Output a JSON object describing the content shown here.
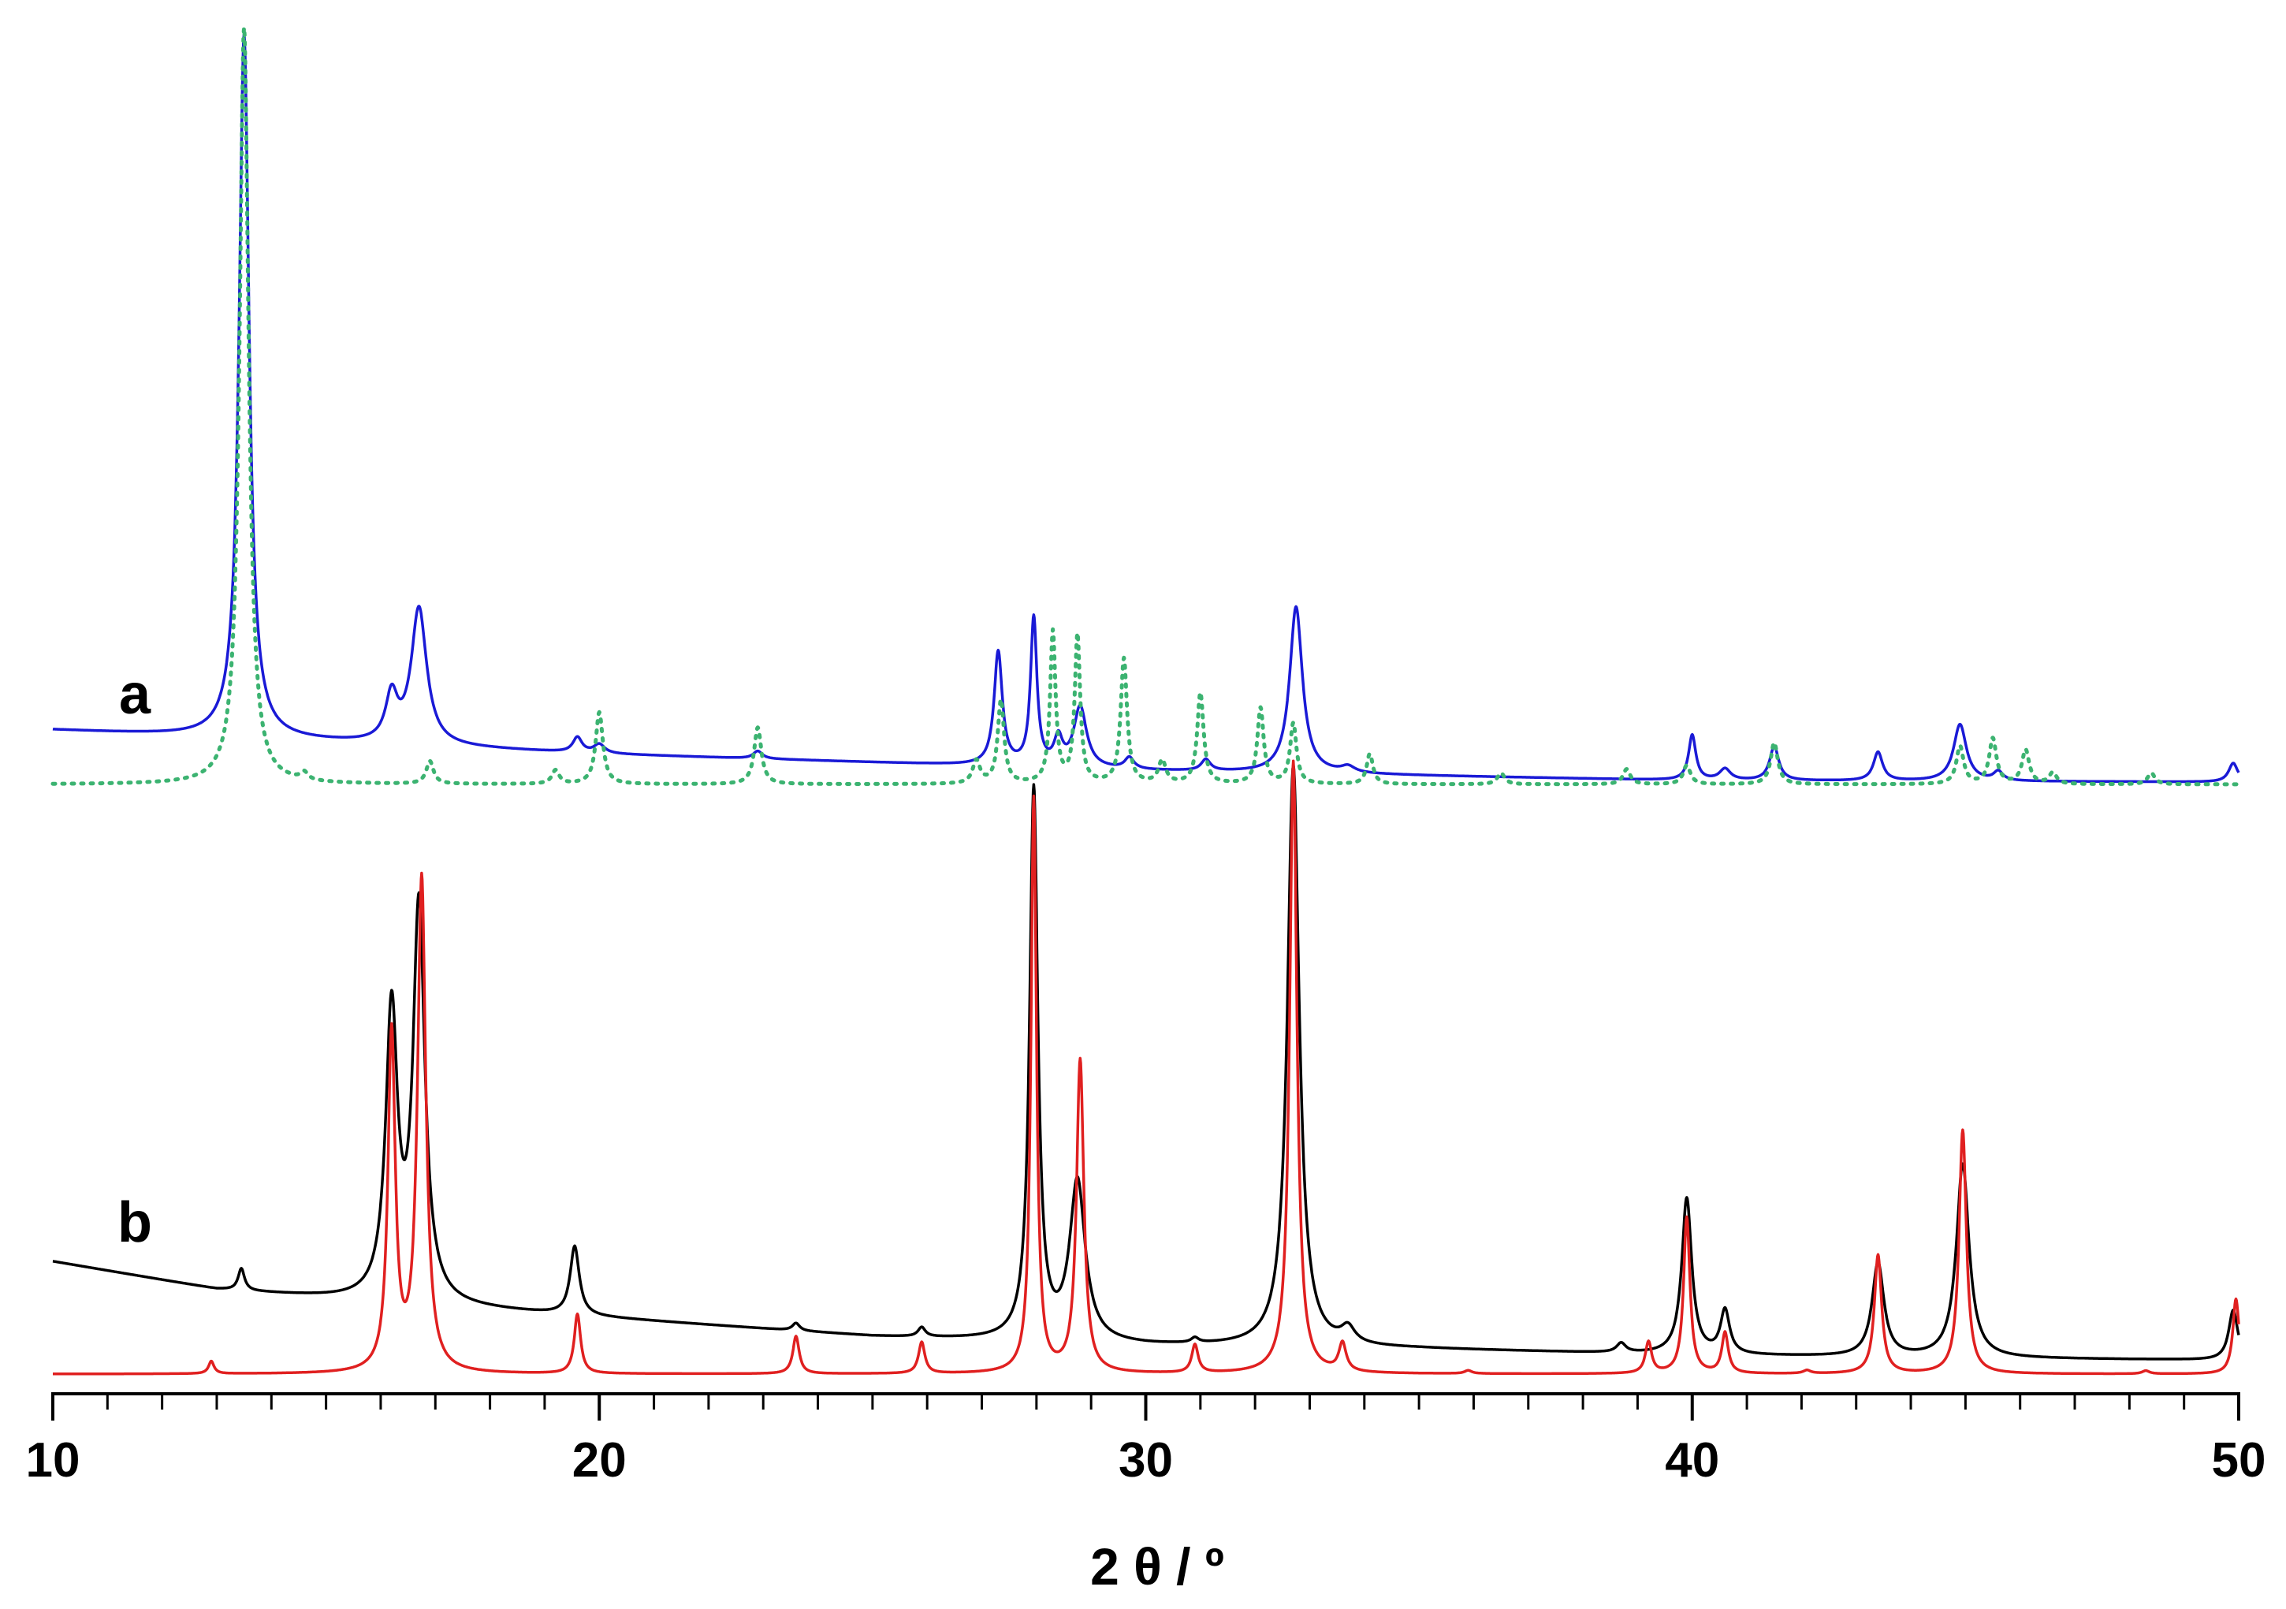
{
  "chart_data": {
    "type": "line",
    "title": "",
    "xlabel": "2 θ / º",
    "ylabel": "",
    "xlim": [
      10,
      50
    ],
    "x_major_ticks": [
      10,
      20,
      30,
      40,
      50
    ],
    "x_minor_step": 1,
    "y_axis_shown": false,
    "grid": false,
    "legend": "none",
    "colors": {
      "a_experimental": "#1a1ad6",
      "a_simulated": "#3cb371",
      "b_experimental": "#000000",
      "b_simulated": "#e02020"
    },
    "panels": [
      {
        "label": "a",
        "label_x": 11.5,
        "yrange": [
          0,
          100
        ],
        "series": [
          {
            "key": "a_experimental",
            "style": "solid",
            "baseline": [
              [
                10,
                7.2
              ],
              [
                20,
                4.0
              ],
              [
                30,
                1.8
              ],
              [
                40,
                0.5
              ],
              [
                50,
                0.3
              ]
            ],
            "peaks": [
              {
                "x": 13.5,
                "h": 93,
                "w": 0.11
              },
              {
                "x": 16.2,
                "h": 6,
                "w": 0.13
              },
              {
                "x": 16.7,
                "h": 18,
                "w": 0.17
              },
              {
                "x": 19.6,
                "h": 2.0,
                "w": 0.1
              },
              {
                "x": 20.0,
                "h": 1.2,
                "w": 0.12
              },
              {
                "x": 22.9,
                "h": 1.0,
                "w": 0.1
              },
              {
                "x": 27.3,
                "h": 15,
                "w": 0.09
              },
              {
                "x": 27.95,
                "h": 19.5,
                "w": 0.07
              },
              {
                "x": 28.4,
                "h": 3.5,
                "w": 0.09
              },
              {
                "x": 28.8,
                "h": 8,
                "w": 0.14
              },
              {
                "x": 29.7,
                "h": 1.5,
                "w": 0.1
              },
              {
                "x": 31.1,
                "h": 1.5,
                "w": 0.1
              },
              {
                "x": 32.75,
                "h": 22,
                "w": 0.14
              },
              {
                "x": 33.7,
                "h": 0.8,
                "w": 0.15
              },
              {
                "x": 40.0,
                "h": 6,
                "w": 0.08
              },
              {
                "x": 40.6,
                "h": 1.5,
                "w": 0.12
              },
              {
                "x": 41.5,
                "h": 4.5,
                "w": 0.1
              },
              {
                "x": 43.4,
                "h": 3.8,
                "w": 0.1
              },
              {
                "x": 44.9,
                "h": 7.5,
                "w": 0.14
              },
              {
                "x": 45.6,
                "h": 1.2,
                "w": 0.1
              },
              {
                "x": 49.9,
                "h": 2.5,
                "w": 0.1
              }
            ]
          },
          {
            "key": "a_simulated",
            "style": "dotted",
            "baseline": [
              [
                10,
                0
              ],
              [
                50,
                0
              ]
            ],
            "peaks": [
              {
                "x": 13.5,
                "h": 100,
                "w": 0.1
              },
              {
                "x": 14.6,
                "h": 1.0,
                "w": 0.08
              },
              {
                "x": 16.9,
                "h": 3.0,
                "w": 0.08
              },
              {
                "x": 19.2,
                "h": 1.8,
                "w": 0.08
              },
              {
                "x": 20.0,
                "h": 9.5,
                "w": 0.08
              },
              {
                "x": 22.9,
                "h": 7.5,
                "w": 0.08
              },
              {
                "x": 26.9,
                "h": 3.0,
                "w": 0.08
              },
              {
                "x": 27.35,
                "h": 11,
                "w": 0.07
              },
              {
                "x": 28.3,
                "h": 20,
                "w": 0.06
              },
              {
                "x": 28.75,
                "h": 19.5,
                "w": 0.06
              },
              {
                "x": 29.6,
                "h": 16.5,
                "w": 0.07
              },
              {
                "x": 30.3,
                "h": 3.0,
                "w": 0.08
              },
              {
                "x": 31.0,
                "h": 12,
                "w": 0.07
              },
              {
                "x": 32.1,
                "h": 10,
                "w": 0.07
              },
              {
                "x": 32.7,
                "h": 8,
                "w": 0.07
              },
              {
                "x": 34.1,
                "h": 4.0,
                "w": 0.07
              },
              {
                "x": 36.5,
                "h": 1.5,
                "w": 0.08
              },
              {
                "x": 38.8,
                "h": 2.0,
                "w": 0.08
              },
              {
                "x": 39.9,
                "h": 2.5,
                "w": 0.08
              },
              {
                "x": 41.5,
                "h": 5.5,
                "w": 0.08
              },
              {
                "x": 44.9,
                "h": 5.0,
                "w": 0.08
              },
              {
                "x": 45.5,
                "h": 6.0,
                "w": 0.08
              },
              {
                "x": 46.1,
                "h": 4.5,
                "w": 0.08
              },
              {
                "x": 46.6,
                "h": 1.5,
                "w": 0.08
              },
              {
                "x": 48.4,
                "h": 1.5,
                "w": 0.08
              }
            ]
          }
        ]
      },
      {
        "label": "b",
        "label_x": 11.5,
        "yrange": [
          0,
          100
        ],
        "series": [
          {
            "key": "b_experimental",
            "style": "solid",
            "baseline": [
              [
                10,
                18
              ],
              [
                13,
                13.5
              ],
              [
                16,
                11.5
              ],
              [
                20,
                9
              ],
              [
                25,
                6
              ],
              [
                30,
                4.5
              ],
              [
                35,
                4
              ],
              [
                40,
                3
              ],
              [
                45,
                2.5
              ],
              [
                50,
                2.2
              ]
            ],
            "peaks": [
              {
                "x": 13.45,
                "h": 3.5,
                "w": 0.07
              },
              {
                "x": 16.2,
                "h": 46,
                "w": 0.13
              },
              {
                "x": 16.7,
                "h": 63,
                "w": 0.13
              },
              {
                "x": 19.55,
                "h": 11,
                "w": 0.1
              },
              {
                "x": 23.6,
                "h": 1.2,
                "w": 0.08
              },
              {
                "x": 25.9,
                "h": 1.5,
                "w": 0.08
              },
              {
                "x": 27.95,
                "h": 88,
                "w": 0.09
              },
              {
                "x": 28.75,
                "h": 25.5,
                "w": 0.17
              },
              {
                "x": 30.9,
                "h": 0.8,
                "w": 0.08
              },
              {
                "x": 32.7,
                "h": 93,
                "w": 0.13
              },
              {
                "x": 33.7,
                "h": 2.5,
                "w": 0.15
              },
              {
                "x": 38.7,
                "h": 1.5,
                "w": 0.1
              },
              {
                "x": 39.9,
                "h": 25,
                "w": 0.11
              },
              {
                "x": 40.6,
                "h": 7,
                "w": 0.1
              },
              {
                "x": 43.4,
                "h": 15,
                "w": 0.13
              },
              {
                "x": 44.95,
                "h": 31,
                "w": 0.14
              },
              {
                "x": 49.9,
                "h": 8,
                "w": 0.1
              }
            ]
          },
          {
            "key": "b_simulated",
            "style": "solid",
            "baseline": [
              [
                10,
                0
              ],
              [
                50,
                0
              ]
            ],
            "peaks": [
              {
                "x": 12.9,
                "h": 2.0,
                "w": 0.06
              },
              {
                "x": 16.2,
                "h": 54,
                "w": 0.08
              },
              {
                "x": 16.75,
                "h": 79,
                "w": 0.09
              },
              {
                "x": 19.6,
                "h": 9.5,
                "w": 0.07
              },
              {
                "x": 23.6,
                "h": 6,
                "w": 0.07
              },
              {
                "x": 25.9,
                "h": 5,
                "w": 0.07
              },
              {
                "x": 27.95,
                "h": 92,
                "w": 0.06
              },
              {
                "x": 28.8,
                "h": 50,
                "w": 0.08
              },
              {
                "x": 30.9,
                "h": 4.5,
                "w": 0.07
              },
              {
                "x": 32.7,
                "h": 98,
                "w": 0.08
              },
              {
                "x": 33.6,
                "h": 4.5,
                "w": 0.08
              },
              {
                "x": 35.9,
                "h": 0.5,
                "w": 0.08
              },
              {
                "x": 39.2,
                "h": 5,
                "w": 0.07
              },
              {
                "x": 39.9,
                "h": 25,
                "w": 0.07
              },
              {
                "x": 40.6,
                "h": 6.5,
                "w": 0.07
              },
              {
                "x": 42.1,
                "h": 0.5,
                "w": 0.08
              },
              {
                "x": 43.4,
                "h": 19,
                "w": 0.08
              },
              {
                "x": 44.95,
                "h": 39,
                "w": 0.08
              },
              {
                "x": 48.3,
                "h": 0.5,
                "w": 0.08
              },
              {
                "x": 49.95,
                "h": 12,
                "w": 0.07
              }
            ]
          }
        ]
      }
    ]
  }
}
